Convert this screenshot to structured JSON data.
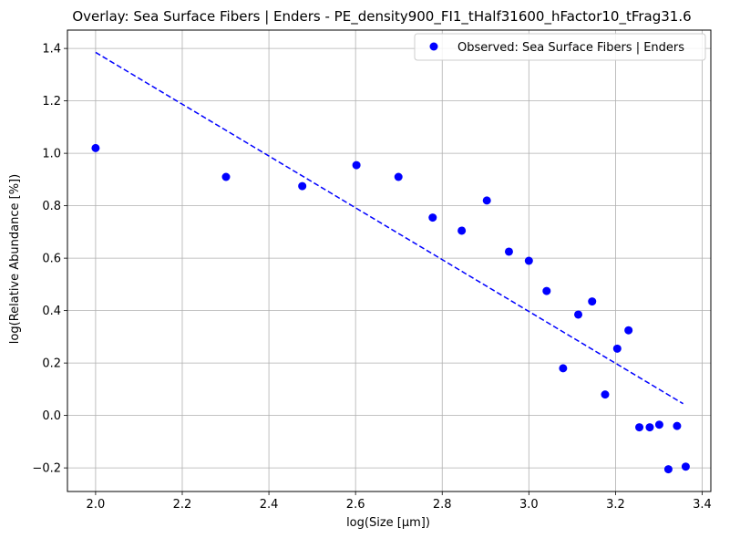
{
  "chart_data": {
    "type": "scatter",
    "title": "Overlay: Sea Surface Fibers | Enders - PE_density900_FI1_tHalf31600_hFactor10_tFrag31.6",
    "xlabel": "log(Size [μm])",
    "ylabel": "log(Relative Abundance [%])",
    "xlim": [
      1.935,
      3.42
    ],
    "ylim": [
      -0.29,
      1.47
    ],
    "xticks": [
      2.0,
      2.2,
      2.4,
      2.6,
      2.8,
      3.0,
      3.2,
      3.4
    ],
    "xtick_labels": [
      "2.0",
      "2.2",
      "2.4",
      "2.6",
      "2.8",
      "3.0",
      "3.2",
      "3.4"
    ],
    "yticks": [
      -0.2,
      0.0,
      0.2,
      0.4,
      0.6,
      0.8,
      1.0,
      1.2,
      1.4
    ],
    "ytick_labels": [
      "−0.2",
      "0.0",
      "0.2",
      "0.4",
      "0.6",
      "0.8",
      "1.0",
      "1.2",
      "1.4"
    ],
    "grid": true,
    "legend_position": "top-right",
    "series": [
      {
        "name": "Observed: Sea Surface Fibers | Enders",
        "kind": "scatter",
        "color": "#0000ff",
        "x": [
          2.0,
          2.301,
          2.477,
          2.602,
          2.699,
          2.778,
          2.845,
          2.903,
          2.954,
          3.0,
          3.041,
          3.079,
          3.114,
          3.146,
          3.176,
          3.204,
          3.23,
          3.255,
          3.279,
          3.301,
          3.322,
          3.342,
          3.362
        ],
        "y": [
          1.02,
          0.91,
          0.875,
          0.955,
          0.91,
          0.755,
          0.705,
          0.82,
          0.625,
          0.59,
          0.475,
          0.18,
          0.385,
          0.435,
          0.08,
          0.255,
          0.325,
          -0.045,
          -0.045,
          -0.035,
          -0.205,
          -0.04,
          -0.195
        ]
      },
      {
        "kind": "line",
        "style": "dashed",
        "color": "#0000ff",
        "x": [
          2.0,
          3.356
        ],
        "y": [
          1.385,
          0.045
        ]
      }
    ]
  }
}
